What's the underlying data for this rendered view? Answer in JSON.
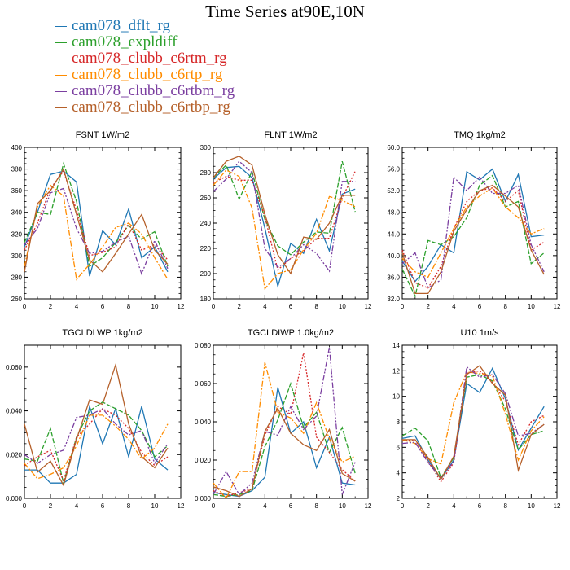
{
  "title": "Time Series at90E,10N",
  "legend": [
    {
      "name": "cam078_dflt_rg",
      "color": "#1f77b4"
    },
    {
      "name": "cam078_expldiff",
      "color": "#2ca02c"
    },
    {
      "name": "cam078_clubb_c6rtm_rg",
      "color": "#d62728"
    },
    {
      "name": "cam078_clubb_c6rtp_rg",
      "color": "#ff8c00"
    },
    {
      "name": "cam078_clubb_c6rtbm_rg",
      "color": "#7b3fa0"
    },
    {
      "name": "cam078_clubb_c6rtbp_rg",
      "color": "#b5602a"
    }
  ],
  "chart_data": [
    {
      "type": "line",
      "title": "FSNT   1W/m2",
      "x": [
        0,
        1,
        2,
        3,
        4,
        5,
        6,
        7,
        8,
        9,
        10,
        11
      ],
      "xlim": [
        0,
        12
      ],
      "ylim": [
        260,
        400
      ],
      "yticks": [
        260,
        280,
        300,
        320,
        340,
        360,
        380,
        400
      ],
      "ytick_labels": [
        "260",
        "280",
        "300",
        "320",
        "340",
        "360",
        "380",
        "400"
      ],
      "series": [
        {
          "name": "cam078_dflt_rg",
          "values": [
            308,
            340,
            375,
            378,
            368,
            281,
            323,
            310,
            343,
            298,
            308,
            285
          ]
        },
        {
          "name": "cam078_expldiff",
          "values": [
            312,
            340,
            338,
            385,
            350,
            290,
            298,
            312,
            328,
            315,
            322,
            290
          ]
        },
        {
          "name": "cam078_clubb_c6rtm_rg",
          "values": [
            305,
            330,
            362,
            378,
            342,
            300,
            303,
            308,
            330,
            305,
            310,
            296
          ]
        },
        {
          "name": "cam078_clubb_c6rtp_rg",
          "values": [
            290,
            345,
            365,
            355,
            278,
            292,
            308,
            326,
            330,
            320,
            298,
            278
          ]
        },
        {
          "name": "cam078_clubb_c6rtbm_rg",
          "values": [
            310,
            325,
            358,
            362,
            325,
            302,
            304,
            312,
            318,
            283,
            314,
            288
          ]
        },
        {
          "name": "cam078_clubb_c6rtbp_rg",
          "values": [
            285,
            348,
            360,
            380,
            338,
            296,
            285,
            302,
            320,
            338,
            305,
            292
          ]
        }
      ]
    },
    {
      "type": "line",
      "title": "FLNT   1W/m2",
      "x": [
        0,
        1,
        2,
        3,
        4,
        5,
        6,
        7,
        8,
        9,
        10,
        11
      ],
      "xlim": [
        0,
        12
      ],
      "ylim": [
        180,
        300
      ],
      "yticks": [
        180,
        200,
        220,
        240,
        260,
        280,
        300
      ],
      "ytick_labels": [
        "180",
        "200",
        "220",
        "240",
        "260",
        "280",
        "300"
      ],
      "series": [
        {
          "name": "cam078_dflt_rg",
          "values": [
            275,
            284,
            285,
            276,
            236,
            190,
            224,
            216,
            243,
            218,
            263,
            267
          ]
        },
        {
          "name": "cam078_expldiff",
          "values": [
            276,
            286,
            259,
            281,
            243,
            222,
            215,
            225,
            233,
            232,
            289,
            249
          ]
        },
        {
          "name": "cam078_clubb_c6rtm_rg",
          "values": [
            272,
            277,
            274,
            274,
            245,
            203,
            212,
            218,
            228,
            228,
            260,
            281
          ]
        },
        {
          "name": "cam078_clubb_c6rtp_rg",
          "values": [
            270,
            282,
            277,
            252,
            188,
            200,
            203,
            219,
            232,
            261,
            258,
            253
          ]
        },
        {
          "name": "cam078_clubb_c6rtbm_rg",
          "values": [
            265,
            275,
            289,
            280,
            220,
            205,
            212,
            223,
            216,
            202,
            273,
            273
          ]
        },
        {
          "name": "cam078_clubb_c6rtbp_rg",
          "values": [
            276,
            289,
            293,
            286,
            247,
            215,
            200,
            229,
            227,
            240,
            262,
            262
          ]
        }
      ]
    },
    {
      "type": "line",
      "title": "TMQ   1kg/m2",
      "x": [
        0,
        1,
        2,
        3,
        4,
        5,
        6,
        7,
        8,
        9,
        10,
        11
      ],
      "xlim": [
        0,
        12
      ],
      "ylim": [
        32,
        60
      ],
      "yticks": [
        32,
        36,
        40,
        44,
        48,
        52,
        56,
        60
      ],
      "ytick_labels": [
        "32.0",
        "36.0",
        "40.0",
        "44.0",
        "48.0",
        "52.0",
        "56.0",
        "60.0"
      ],
      "series": [
        {
          "name": "cam078_dflt_rg",
          "values": [
            39.0,
            35.2,
            38.0,
            42.0,
            40.5,
            55.5,
            54.0,
            56.0,
            50.0,
            55.0,
            43.5,
            43.8
          ]
        },
        {
          "name": "cam078_expldiff",
          "values": [
            37.5,
            32.5,
            42.8,
            42.0,
            43.5,
            47.0,
            53.0,
            54.8,
            49.0,
            50.0,
            38.5,
            40.5
          ]
        },
        {
          "name": "cam078_clubb_c6rtm_rg",
          "values": [
            41.0,
            35.0,
            34.0,
            38.0,
            45.0,
            50.0,
            52.0,
            52.5,
            50.0,
            52.0,
            41.0,
            42.5
          ]
        },
        {
          "name": "cam078_clubb_c6rtp_rg",
          "values": [
            39.5,
            37.0,
            36.0,
            40.5,
            45.0,
            49.0,
            51.0,
            52.5,
            49.0,
            47.0,
            44.0,
            45.0
          ]
        },
        {
          "name": "cam078_clubb_c6rtbm_rg",
          "values": [
            38.5,
            40.5,
            34.0,
            35.5,
            54.5,
            52.0,
            54.5,
            51.5,
            51.5,
            53.0,
            42.0,
            37.0
          ]
        },
        {
          "name": "cam078_clubb_c6rtbp_rg",
          "values": [
            40.5,
            33.0,
            33.0,
            37.0,
            44.5,
            48.5,
            52.0,
            53.0,
            51.0,
            49.0,
            41.0,
            36.5
          ]
        }
      ]
    },
    {
      "type": "line",
      "title": "TGCLDLWP   1kg/m2",
      "x": [
        0,
        1,
        2,
        3,
        4,
        5,
        6,
        7,
        8,
        9,
        10,
        11
      ],
      "xlim": [
        0,
        12
      ],
      "ylim": [
        0,
        0.07
      ],
      "yticks": [
        0,
        0.02,
        0.04,
        0.06
      ],
      "ytick_labels": [
        "0.000",
        "0.020",
        "0.040",
        "0.060"
      ],
      "series": [
        {
          "name": "cam078_dflt_rg",
          "values": [
            0.013,
            0.013,
            0.007,
            0.007,
            0.011,
            0.042,
            0.025,
            0.041,
            0.019,
            0.042,
            0.018,
            0.013
          ]
        },
        {
          "name": "cam078_expldiff",
          "values": [
            0.018,
            0.017,
            0.032,
            0.007,
            0.028,
            0.04,
            0.044,
            0.041,
            0.038,
            0.031,
            0.019,
            0.024
          ]
        },
        {
          "name": "cam078_clubb_c6rtm_rg",
          "values": [
            0.015,
            0.019,
            0.022,
            0.008,
            0.028,
            0.034,
            0.041,
            0.038,
            0.032,
            0.021,
            0.015,
            0.019
          ]
        },
        {
          "name": "cam078_clubb_c6rtp_rg",
          "values": [
            0.016,
            0.009,
            0.011,
            0.014,
            0.024,
            0.038,
            0.038,
            0.033,
            0.027,
            0.018,
            0.023,
            0.034
          ]
        },
        {
          "name": "cam078_clubb_c6rtbm_rg",
          "values": [
            0.02,
            0.016,
            0.02,
            0.022,
            0.037,
            0.038,
            0.041,
            0.034,
            0.029,
            0.031,
            0.016,
            0.025
          ]
        },
        {
          "name": "cam078_clubb_c6rtbp_rg",
          "values": [
            0.034,
            0.012,
            0.017,
            0.006,
            0.027,
            0.045,
            0.043,
            0.061,
            0.034,
            0.019,
            0.014,
            0.023
          ]
        }
      ]
    },
    {
      "type": "line",
      "title": "TGCLDIWP   1.0kg/m2",
      "x": [
        0,
        1,
        2,
        3,
        4,
        5,
        6,
        7,
        8,
        9,
        10,
        11
      ],
      "xlim": [
        0,
        12
      ],
      "ylim": [
        0,
        0.08
      ],
      "yticks": [
        0,
        0.02,
        0.04,
        0.06,
        0.08
      ],
      "ytick_labels": [
        "0.000",
        "0.020",
        "0.040",
        "0.060",
        "0.080"
      ],
      "series": [
        {
          "name": "cam078_dflt_rg",
          "values": [
            0.003,
            0.002,
            0.001,
            0.004,
            0.011,
            0.058,
            0.034,
            0.04,
            0.016,
            0.032,
            0.008,
            0.007
          ]
        },
        {
          "name": "cam078_expldiff",
          "values": [
            0.002,
            0.001,
            0.002,
            0.004,
            0.027,
            0.041,
            0.06,
            0.037,
            0.045,
            0.024,
            0.037,
            0.013
          ]
        },
        {
          "name": "cam078_clubb_c6rtm_rg",
          "values": [
            0.004,
            0.001,
            0.003,
            0.005,
            0.033,
            0.048,
            0.044,
            0.076,
            0.032,
            0.024,
            0.015,
            0.009
          ]
        },
        {
          "name": "cam078_clubb_c6rtp_rg",
          "values": [
            0.008,
            0.0,
            0.014,
            0.014,
            0.071,
            0.045,
            0.042,
            0.034,
            0.05,
            0.031,
            0.019,
            0.022
          ]
        },
        {
          "name": "cam078_clubb_c6rtbm_rg",
          "values": [
            0.002,
            0.014,
            0.002,
            0.008,
            0.035,
            0.033,
            0.048,
            0.036,
            0.043,
            0.079,
            0.002,
            0.019
          ]
        },
        {
          "name": "cam078_clubb_c6rtbp_rg",
          "values": [
            0.006,
            0.004,
            0.001,
            0.005,
            0.035,
            0.047,
            0.034,
            0.028,
            0.025,
            0.036,
            0.013,
            0.009
          ]
        }
      ]
    },
    {
      "type": "line",
      "title": "U10   1m/s",
      "x": [
        0,
        1,
        2,
        3,
        4,
        5,
        6,
        7,
        8,
        9,
        10,
        11
      ],
      "xlim": [
        0,
        12
      ],
      "ylim": [
        2,
        14
      ],
      "yticks": [
        2,
        4,
        6,
        8,
        10,
        12,
        14
      ],
      "ytick_labels": [
        "2",
        "4",
        "6",
        "8",
        "10",
        "12",
        "14"
      ],
      "series": [
        {
          "name": "cam078_dflt_rg",
          "values": [
            6.7,
            6.9,
            5.0,
            3.5,
            5.0,
            11.0,
            10.3,
            12.2,
            9.8,
            5.8,
            7.5,
            9.2
          ]
        },
        {
          "name": "cam078_expldiff",
          "values": [
            6.9,
            7.5,
            6.5,
            3.6,
            5.2,
            11.5,
            11.7,
            11.2,
            9.0,
            5.8,
            7.0,
            7.3
          ]
        },
        {
          "name": "cam078_clubb_c6rtm_rg",
          "values": [
            6.5,
            6.6,
            4.9,
            3.3,
            4.8,
            11.8,
            12.0,
            11.1,
            9.6,
            6.2,
            8.0,
            8.5
          ]
        },
        {
          "name": "cam078_clubb_c6rtp_rg",
          "values": [
            6.6,
            6.3,
            5.1,
            4.7,
            9.5,
            11.9,
            11.8,
            11.6,
            8.6,
            5.0,
            7.3,
            8.4
          ]
        },
        {
          "name": "cam078_clubb_c6rtbm_rg",
          "values": [
            6.3,
            6.4,
            4.8,
            3.6,
            4.9,
            12.3,
            11.5,
            11.7,
            10.2,
            6.9,
            7.1,
            7.8
          ]
        },
        {
          "name": "cam078_clubb_c6rtbp_rg",
          "values": [
            6.6,
            6.6,
            5.2,
            3.5,
            5.3,
            11.7,
            12.4,
            11.0,
            10.1,
            4.2,
            7.0,
            7.8
          ]
        }
      ]
    }
  ]
}
